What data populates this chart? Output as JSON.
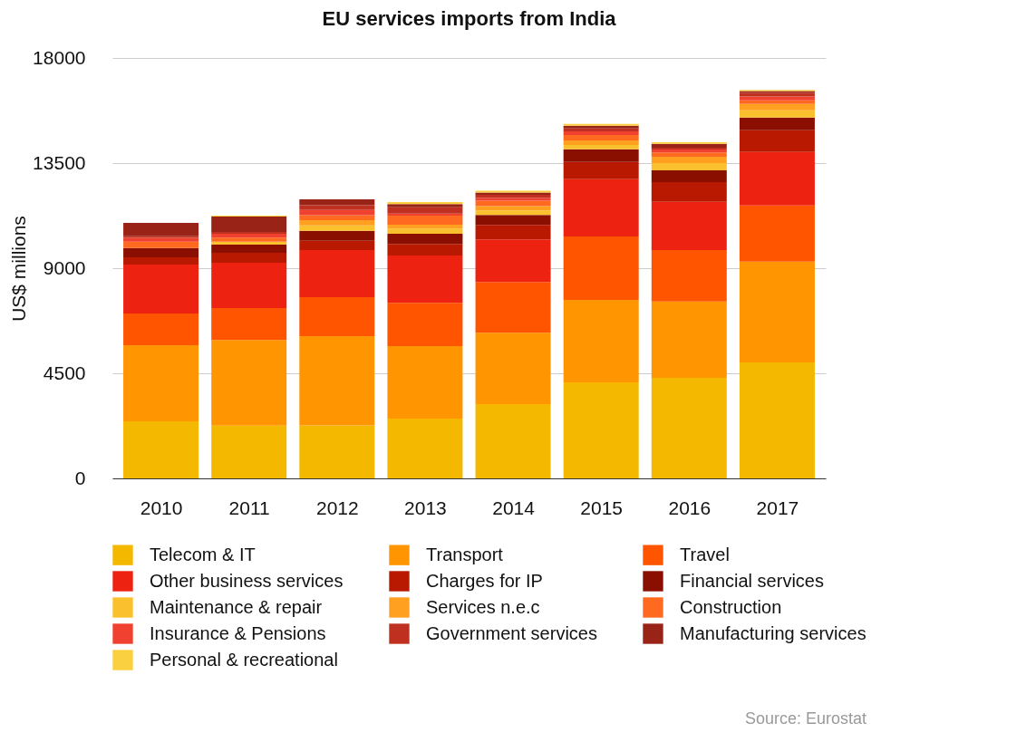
{
  "chart_data": {
    "type": "bar",
    "title": "EU services imports from India",
    "ylabel": "US$ millions",
    "stacked": true,
    "categories": [
      "2010",
      "2011",
      "2012",
      "2013",
      "2014",
      "2015",
      "2016",
      "2017"
    ],
    "series": [
      {
        "name": "Telecom & IT",
        "color": "#f5b800",
        "values": [
          2440,
          2260,
          2270,
          2560,
          3180,
          4110,
          4310,
          4970
        ]
      },
      {
        "name": "Transport",
        "color": "#ff9500",
        "values": [
          3260,
          3670,
          3820,
          3100,
          3060,
          3530,
          3260,
          4310
        ]
      },
      {
        "name": "Travel",
        "color": "#ff5500",
        "values": [
          1360,
          1360,
          1670,
          1860,
          2170,
          2720,
          2210,
          2410
        ]
      },
      {
        "name": "Other business services",
        "color": "#ee2211",
        "values": [
          2100,
          1940,
          2020,
          2020,
          1820,
          2450,
          2060,
          2290
        ]
      },
      {
        "name": "Charges for IP",
        "color": "#b81900",
        "values": [
          310,
          430,
          390,
          500,
          620,
          740,
          850,
          930
        ]
      },
      {
        "name": "Financial services",
        "color": "#8b0f00",
        "values": [
          390,
          350,
          430,
          430,
          430,
          540,
          500,
          540
        ]
      },
      {
        "name": "Maintenance & repair",
        "color": "#fbc02d",
        "values": [
          0,
          120,
          230,
          230,
          190,
          190,
          310,
          310
        ]
      },
      {
        "name": "Services n.e.c",
        "color": "#ffa020",
        "values": [
          0,
          0,
          230,
          160,
          190,
          190,
          270,
          270
        ]
      },
      {
        "name": "Construction",
        "color": "#ff6a20",
        "values": [
          270,
          180,
          210,
          390,
          230,
          230,
          190,
          160
        ]
      },
      {
        "name": "Insurance & Pensions",
        "color": "#f04030",
        "values": [
          170,
          160,
          220,
          90,
          120,
          160,
          120,
          160
        ]
      },
      {
        "name": "Government services",
        "color": "#c03020",
        "values": [
          70,
          80,
          210,
          270,
          130,
          120,
          80,
          160
        ]
      },
      {
        "name": "Manufacturing services",
        "color": "#9a2318",
        "values": [
          570,
          660,
          250,
          130,
          100,
          120,
          160,
          70
        ]
      },
      {
        "name": "Personal & recreational",
        "color": "#fbd040",
        "values": [
          0,
          40,
          0,
          90,
          80,
          80,
          70,
          50
        ]
      }
    ],
    "ylim": [
      0,
      18000
    ],
    "yticks": [
      0,
      4500,
      9000,
      13500,
      18000
    ],
    "grid": "y",
    "legend": "bottom",
    "annotations": [
      "Source: Eurostat"
    ]
  }
}
